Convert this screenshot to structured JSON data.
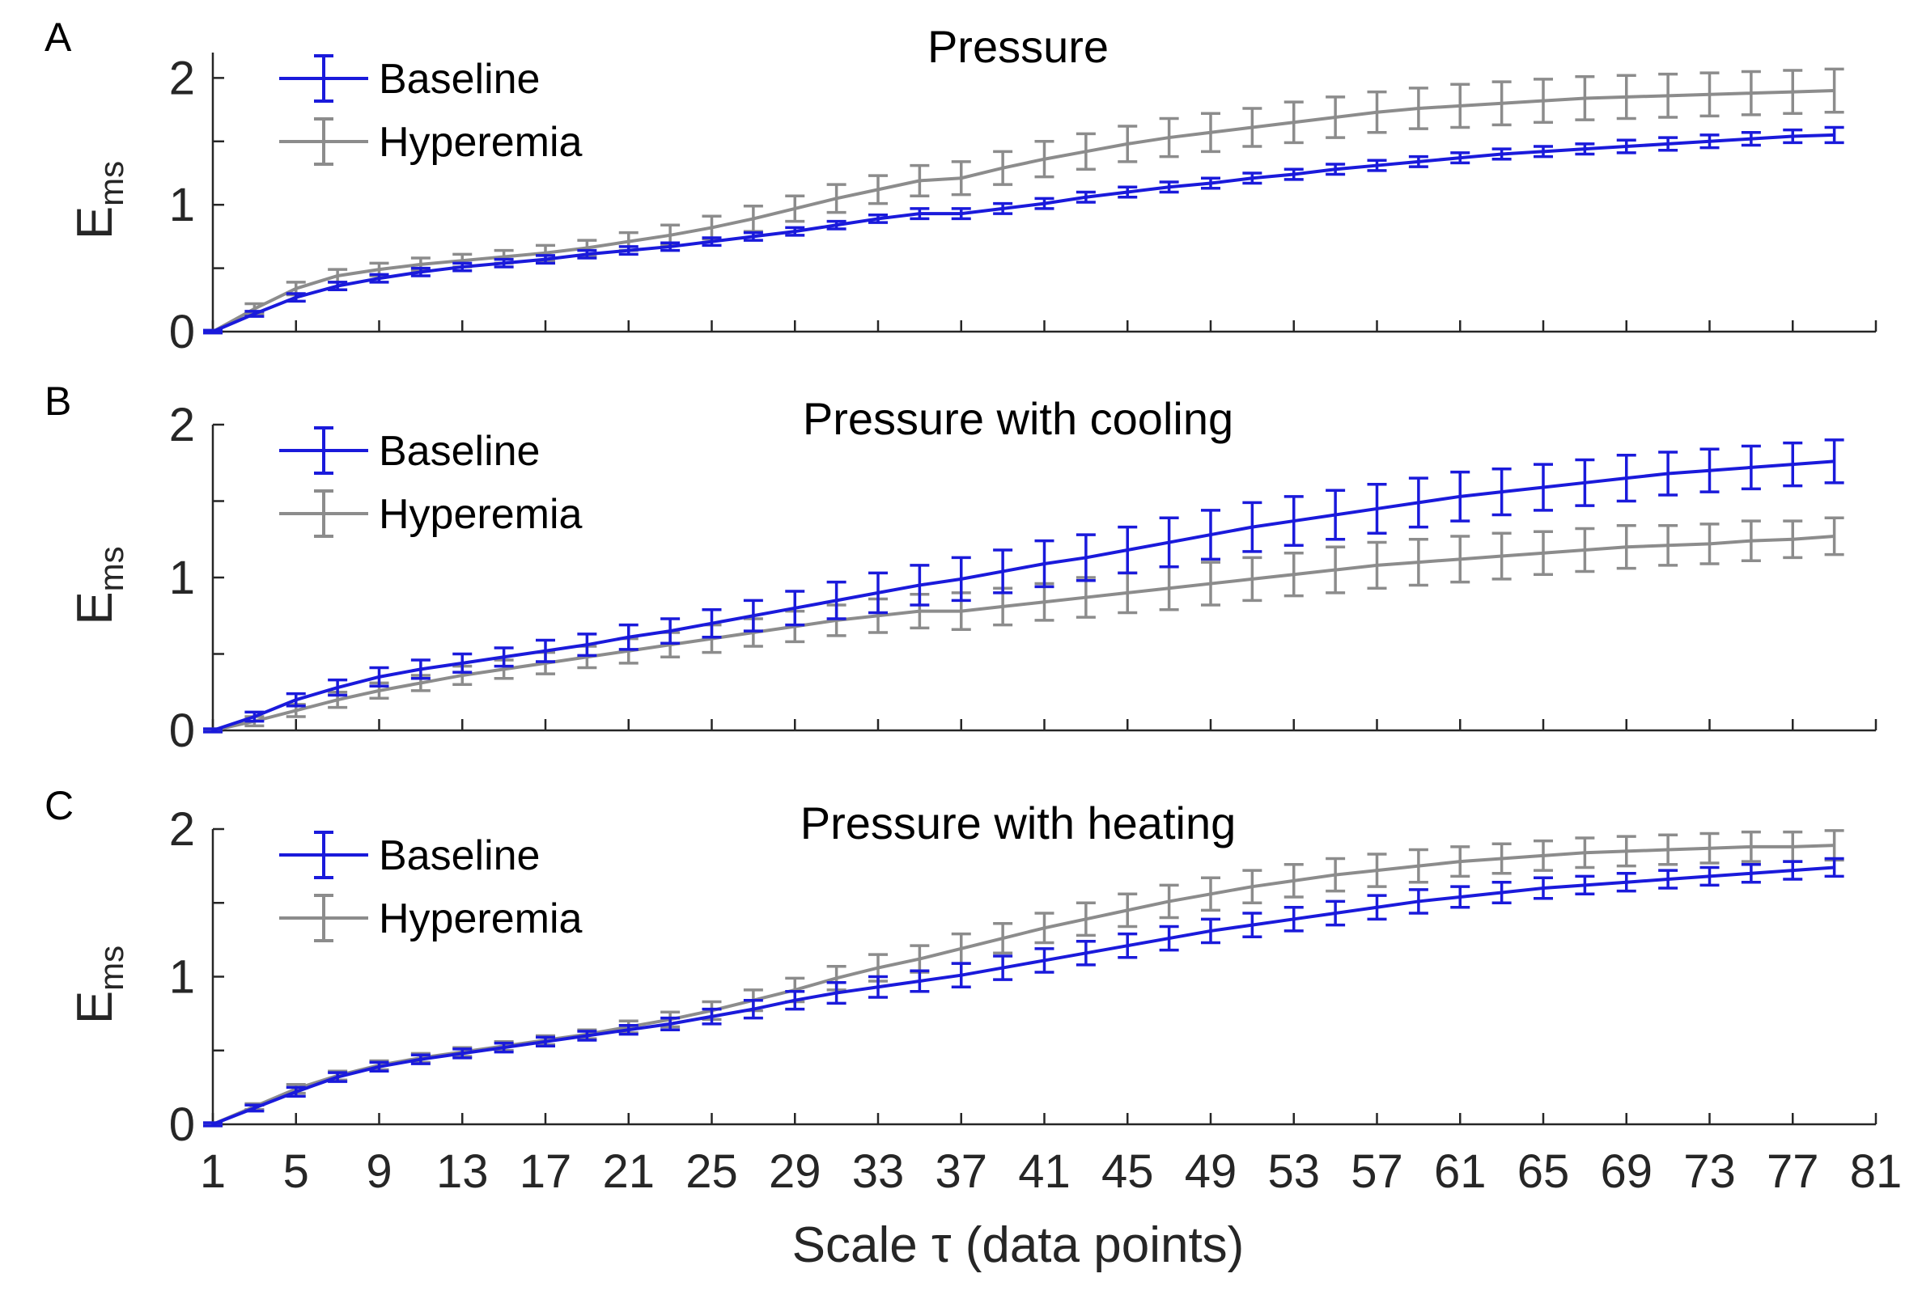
{
  "figure": {
    "xlabel": "Scale τ (data points)",
    "ylabel_main": "E",
    "ylabel_sub": "ms"
  },
  "colors": {
    "baseline": "#1a1adb",
    "hyperemia": "#8c8c8c",
    "axis": "#262626"
  },
  "chart_data": [
    {
      "type": "line",
      "panel": "A",
      "title": "Pressure",
      "legend_placement": "top-left",
      "xlim": [
        1,
        81
      ],
      "ylim": [
        0,
        2.2
      ],
      "xticks": [
        1,
        5,
        9,
        13,
        17,
        21,
        25,
        29,
        33,
        37,
        41,
        45,
        49,
        53,
        57,
        61,
        65,
        69,
        73,
        77,
        81
      ],
      "yticks": [
        0,
        1,
        2
      ],
      "x": [
        1,
        3,
        5,
        7,
        9,
        11,
        13,
        15,
        17,
        19,
        21,
        23,
        25,
        27,
        29,
        31,
        33,
        35,
        37,
        39,
        41,
        43,
        45,
        47,
        49,
        51,
        53,
        55,
        57,
        59,
        61,
        63,
        65,
        67,
        69,
        71,
        73,
        75,
        77,
        79
      ],
      "series": [
        {
          "name": "Baseline",
          "color": "#1a1adb",
          "values": [
            0.0,
            0.14,
            0.27,
            0.36,
            0.42,
            0.47,
            0.51,
            0.54,
            0.57,
            0.61,
            0.64,
            0.67,
            0.71,
            0.75,
            0.79,
            0.84,
            0.89,
            0.93,
            0.93,
            0.97,
            1.01,
            1.06,
            1.1,
            1.14,
            1.17,
            1.21,
            1.24,
            1.28,
            1.31,
            1.34,
            1.37,
            1.4,
            1.42,
            1.44,
            1.46,
            1.48,
            1.5,
            1.52,
            1.54,
            1.55
          ],
          "errors": [
            0.01,
            0.02,
            0.03,
            0.03,
            0.03,
            0.03,
            0.03,
            0.03,
            0.03,
            0.03,
            0.03,
            0.03,
            0.03,
            0.03,
            0.03,
            0.03,
            0.03,
            0.04,
            0.04,
            0.04,
            0.04,
            0.04,
            0.04,
            0.04,
            0.04,
            0.04,
            0.04,
            0.04,
            0.04,
            0.04,
            0.04,
            0.04,
            0.04,
            0.04,
            0.05,
            0.05,
            0.05,
            0.05,
            0.05,
            0.06
          ]
        },
        {
          "name": "Hyperemia",
          "color": "#8c8c8c",
          "values": [
            0.0,
            0.18,
            0.34,
            0.44,
            0.49,
            0.53,
            0.56,
            0.59,
            0.62,
            0.66,
            0.71,
            0.76,
            0.82,
            0.89,
            0.97,
            1.05,
            1.12,
            1.19,
            1.21,
            1.29,
            1.36,
            1.42,
            1.48,
            1.53,
            1.57,
            1.61,
            1.65,
            1.69,
            1.73,
            1.76,
            1.78,
            1.8,
            1.82,
            1.84,
            1.85,
            1.86,
            1.87,
            1.88,
            1.89,
            1.9
          ],
          "errors": [
            0.01,
            0.04,
            0.05,
            0.05,
            0.05,
            0.05,
            0.05,
            0.05,
            0.06,
            0.06,
            0.07,
            0.08,
            0.09,
            0.1,
            0.1,
            0.11,
            0.11,
            0.12,
            0.13,
            0.13,
            0.14,
            0.14,
            0.14,
            0.15,
            0.15,
            0.15,
            0.16,
            0.16,
            0.16,
            0.16,
            0.17,
            0.17,
            0.17,
            0.17,
            0.17,
            0.17,
            0.17,
            0.17,
            0.17,
            0.17
          ]
        }
      ]
    },
    {
      "type": "line",
      "panel": "B",
      "title": "Pressure with cooling",
      "legend_placement": "top-left",
      "xlim": [
        1,
        81
      ],
      "ylim": [
        0,
        2.0
      ],
      "xticks": [
        1,
        5,
        9,
        13,
        17,
        21,
        25,
        29,
        33,
        37,
        41,
        45,
        49,
        53,
        57,
        61,
        65,
        69,
        73,
        77,
        81
      ],
      "yticks": [
        0,
        1,
        2
      ],
      "x": [
        1,
        3,
        5,
        7,
        9,
        11,
        13,
        15,
        17,
        19,
        21,
        23,
        25,
        27,
        29,
        31,
        33,
        35,
        37,
        39,
        41,
        43,
        45,
        47,
        49,
        51,
        53,
        55,
        57,
        59,
        61,
        63,
        65,
        67,
        69,
        71,
        73,
        75,
        77,
        79
      ],
      "series": [
        {
          "name": "Baseline",
          "color": "#1a1adb",
          "values": [
            0.0,
            0.09,
            0.2,
            0.28,
            0.35,
            0.4,
            0.44,
            0.48,
            0.52,
            0.56,
            0.61,
            0.65,
            0.7,
            0.75,
            0.8,
            0.85,
            0.9,
            0.95,
            0.99,
            1.04,
            1.09,
            1.13,
            1.18,
            1.23,
            1.28,
            1.33,
            1.37,
            1.41,
            1.45,
            1.49,
            1.53,
            1.56,
            1.59,
            1.62,
            1.65,
            1.68,
            1.7,
            1.72,
            1.74,
            1.76
          ],
          "errors": [
            0.01,
            0.03,
            0.04,
            0.05,
            0.06,
            0.06,
            0.06,
            0.06,
            0.07,
            0.07,
            0.08,
            0.08,
            0.09,
            0.1,
            0.11,
            0.12,
            0.13,
            0.13,
            0.14,
            0.14,
            0.15,
            0.15,
            0.15,
            0.16,
            0.16,
            0.16,
            0.16,
            0.16,
            0.16,
            0.16,
            0.16,
            0.15,
            0.15,
            0.15,
            0.15,
            0.14,
            0.14,
            0.14,
            0.14,
            0.14
          ]
        },
        {
          "name": "Hyperemia",
          "color": "#8c8c8c",
          "values": [
            0.0,
            0.06,
            0.13,
            0.2,
            0.26,
            0.31,
            0.36,
            0.4,
            0.44,
            0.48,
            0.52,
            0.56,
            0.6,
            0.64,
            0.68,
            0.72,
            0.75,
            0.78,
            0.78,
            0.81,
            0.84,
            0.87,
            0.9,
            0.93,
            0.96,
            0.99,
            1.02,
            1.05,
            1.08,
            1.1,
            1.12,
            1.14,
            1.16,
            1.18,
            1.2,
            1.21,
            1.22,
            1.24,
            1.25,
            1.27
          ],
          "errors": [
            0.01,
            0.03,
            0.04,
            0.05,
            0.05,
            0.05,
            0.06,
            0.06,
            0.07,
            0.07,
            0.08,
            0.08,
            0.09,
            0.09,
            0.1,
            0.1,
            0.11,
            0.11,
            0.12,
            0.12,
            0.12,
            0.13,
            0.13,
            0.14,
            0.14,
            0.14,
            0.14,
            0.15,
            0.15,
            0.15,
            0.15,
            0.15,
            0.14,
            0.14,
            0.14,
            0.13,
            0.13,
            0.13,
            0.12,
            0.12
          ]
        }
      ]
    },
    {
      "type": "line",
      "panel": "C",
      "title": "Pressure with heating",
      "legend_placement": "top-left",
      "xlim": [
        1,
        81
      ],
      "ylim": [
        0,
        2.0
      ],
      "xticks": [
        1,
        5,
        9,
        13,
        17,
        21,
        25,
        29,
        33,
        37,
        41,
        45,
        49,
        53,
        57,
        61,
        65,
        69,
        73,
        77,
        81
      ],
      "yticks": [
        0,
        1,
        2
      ],
      "x": [
        1,
        3,
        5,
        7,
        9,
        11,
        13,
        15,
        17,
        19,
        21,
        23,
        25,
        27,
        29,
        31,
        33,
        35,
        37,
        39,
        41,
        43,
        45,
        47,
        49,
        51,
        53,
        55,
        57,
        59,
        61,
        63,
        65,
        67,
        69,
        71,
        73,
        75,
        77,
        79
      ],
      "series": [
        {
          "name": "Baseline",
          "color": "#1a1adb",
          "values": [
            0.0,
            0.11,
            0.22,
            0.32,
            0.39,
            0.44,
            0.48,
            0.52,
            0.56,
            0.6,
            0.64,
            0.68,
            0.73,
            0.78,
            0.84,
            0.89,
            0.93,
            0.97,
            1.01,
            1.06,
            1.11,
            1.16,
            1.21,
            1.26,
            1.31,
            1.35,
            1.39,
            1.43,
            1.47,
            1.51,
            1.54,
            1.57,
            1.6,
            1.62,
            1.64,
            1.66,
            1.68,
            1.7,
            1.72,
            1.74
          ],
          "errors": [
            0.01,
            0.02,
            0.03,
            0.03,
            0.03,
            0.03,
            0.03,
            0.03,
            0.03,
            0.03,
            0.03,
            0.04,
            0.05,
            0.06,
            0.06,
            0.07,
            0.07,
            0.07,
            0.08,
            0.08,
            0.08,
            0.08,
            0.08,
            0.08,
            0.08,
            0.08,
            0.08,
            0.08,
            0.08,
            0.08,
            0.07,
            0.07,
            0.07,
            0.06,
            0.06,
            0.06,
            0.06,
            0.06,
            0.06,
            0.06
          ]
        },
        {
          "name": "Hyperemia",
          "color": "#8c8c8c",
          "values": [
            0.0,
            0.12,
            0.24,
            0.33,
            0.4,
            0.45,
            0.49,
            0.53,
            0.57,
            0.61,
            0.66,
            0.71,
            0.77,
            0.84,
            0.91,
            0.99,
            1.06,
            1.12,
            1.19,
            1.26,
            1.33,
            1.39,
            1.45,
            1.51,
            1.56,
            1.61,
            1.65,
            1.69,
            1.72,
            1.75,
            1.78,
            1.8,
            1.82,
            1.84,
            1.85,
            1.86,
            1.87,
            1.88,
            1.88,
            1.89
          ],
          "errors": [
            0.01,
            0.02,
            0.03,
            0.03,
            0.03,
            0.03,
            0.03,
            0.03,
            0.03,
            0.03,
            0.04,
            0.05,
            0.06,
            0.07,
            0.08,
            0.08,
            0.09,
            0.09,
            0.1,
            0.1,
            0.1,
            0.11,
            0.11,
            0.11,
            0.11,
            0.11,
            0.11,
            0.11,
            0.11,
            0.11,
            0.1,
            0.1,
            0.1,
            0.1,
            0.1,
            0.1,
            0.1,
            0.1,
            0.1,
            0.1
          ]
        }
      ]
    }
  ]
}
